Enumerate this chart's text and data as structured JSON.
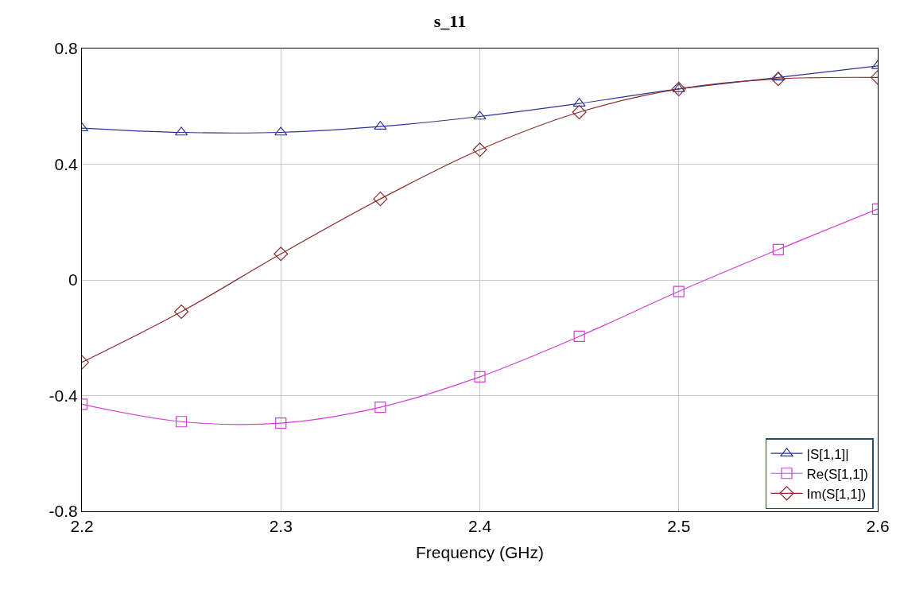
{
  "chart_data": {
    "type": "line",
    "title": "s_11",
    "xlabel": "Frequency (GHz)",
    "x": [
      2.2,
      2.25,
      2.3,
      2.35,
      2.4,
      2.45,
      2.5,
      2.55,
      2.6
    ],
    "xlim": [
      2.2,
      2.6
    ],
    "xticks": [
      2.2,
      2.3,
      2.4,
      2.5,
      2.6
    ],
    "ylim": [
      -0.8,
      0.8
    ],
    "yticks": [
      -0.8,
      -0.4,
      0,
      0.4,
      0.8
    ],
    "grid": true,
    "legend": "bottom right",
    "series": [
      {
        "name": "|S[1,1]|",
        "color": "#2a3596",
        "marker": "triangle",
        "values": [
          0.525,
          0.51,
          0.51,
          0.53,
          0.565,
          0.61,
          0.66,
          0.7,
          0.74
        ]
      },
      {
        "name": "Re(S[1,1])",
        "color": "#d23fd2",
        "marker": "square",
        "values": [
          -0.43,
          -0.49,
          -0.495,
          -0.44,
          -0.335,
          -0.195,
          -0.04,
          0.105,
          0.245
        ]
      },
      {
        "name": "Im(S[1,1])",
        "color": "#8b2b2b",
        "marker": "diamond",
        "values": [
          -0.285,
          -0.11,
          0.09,
          0.28,
          0.45,
          0.58,
          0.66,
          0.695,
          0.7
        ]
      }
    ]
  }
}
